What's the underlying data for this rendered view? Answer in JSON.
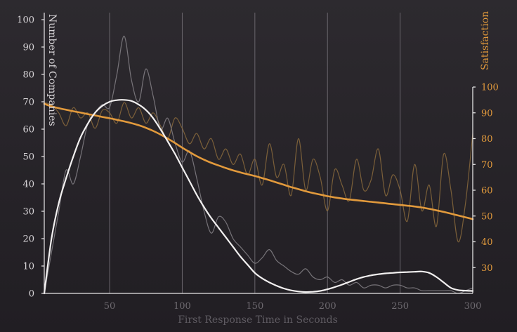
{
  "chart_data": {
    "type": "line",
    "title": "",
    "xlabel": "First Response Time in Seconds",
    "ylabel_left": "Number of Companies",
    "ylabel_right": "Satisfaction",
    "xlim": [
      5,
      300
    ],
    "ylim_left": [
      0,
      100
    ],
    "ylim_right": [
      20,
      100
    ],
    "x_ticks": [
      50,
      100,
      150,
      200,
      250,
      300
    ],
    "y_ticks_left": [
      0,
      10,
      20,
      30,
      40,
      50,
      60,
      70,
      80,
      90,
      100
    ],
    "y_ticks_right": [
      30,
      40,
      50,
      60,
      70,
      80,
      90,
      100
    ],
    "grid": "vertical at x ticks",
    "colors": {
      "companies_raw": "#807c82",
      "companies_smooth": "#f2f0f0",
      "satisfaction_raw": "#8a6a3c",
      "satisfaction_smooth": "#e29a3c",
      "left_axis_text": "#d8d5d8",
      "right_axis_text": "#e29a3c"
    },
    "series": [
      {
        "axis": "left",
        "style": "raw",
        "x": [
          5,
          10,
          15,
          20,
          25,
          30,
          35,
          40,
          45,
          50,
          55,
          60,
          65,
          70,
          75,
          80,
          85,
          90,
          95,
          100,
          105,
          110,
          115,
          120,
          125,
          130,
          135,
          140,
          145,
          150,
          155,
          160,
          165,
          170,
          175,
          180,
          185,
          190,
          195,
          200,
          205,
          210,
          215,
          220,
          225,
          230,
          235,
          240,
          245,
          250,
          255,
          260,
          265,
          270,
          275,
          280,
          285,
          290,
          295,
          300
        ],
        "values": [
          0,
          15,
          30,
          45,
          40,
          50,
          62,
          66,
          69,
          68,
          80,
          94,
          78,
          70,
          82,
          72,
          60,
          64,
          55,
          48,
          52,
          42,
          30,
          22,
          28,
          26,
          20,
          17,
          14,
          11,
          13,
          16,
          12,
          10,
          8,
          7,
          9,
          6,
          5,
          6,
          4,
          5,
          3,
          4,
          2,
          3,
          3,
          2,
          3,
          3,
          2,
          2,
          1,
          1,
          1,
          1,
          1,
          0,
          1,
          2
        ]
      },
      {
        "axis": "left",
        "style": "smooth",
        "x": [
          5,
          10,
          15,
          20,
          25,
          30,
          35,
          40,
          45,
          50,
          55,
          60,
          65,
          70,
          75,
          80,
          85,
          90,
          95,
          100,
          105,
          110,
          115,
          120,
          125,
          130,
          135,
          140,
          145,
          150,
          155,
          160,
          165,
          170,
          175,
          180,
          185,
          190,
          195,
          200,
          205,
          210,
          215,
          220,
          225,
          230,
          235,
          240,
          245,
          250,
          255,
          260,
          265,
          270,
          275,
          280,
          285,
          290,
          295,
          300
        ],
        "values": [
          0,
          20,
          33,
          42,
          50,
          57,
          62,
          66,
          68.5,
          70,
          70.6,
          70.7,
          70.3,
          69,
          67,
          64,
          60,
          55.5,
          51,
          46,
          41,
          36,
          31.5,
          27.5,
          24,
          20.5,
          17,
          13.5,
          10.5,
          7.5,
          5.5,
          4,
          2.8,
          1.8,
          1.1,
          0.7,
          0.5,
          0.6,
          0.9,
          1.5,
          2.3,
          3.2,
          4.2,
          5.2,
          6,
          6.6,
          7,
          7.3,
          7.5,
          7.7,
          7.8,
          7.9,
          8,
          7.5,
          6,
          4,
          2,
          1.2,
          1,
          0.9
        ]
      },
      {
        "axis": "right",
        "style": "raw",
        "x": [
          5,
          10,
          15,
          20,
          25,
          30,
          35,
          40,
          45,
          50,
          55,
          60,
          65,
          70,
          75,
          80,
          85,
          90,
          95,
          100,
          105,
          110,
          115,
          120,
          125,
          130,
          135,
          140,
          145,
          150,
          155,
          160,
          165,
          170,
          175,
          180,
          185,
          190,
          195,
          200,
          205,
          210,
          215,
          220,
          225,
          230,
          235,
          240,
          245,
          250,
          255,
          260,
          265,
          270,
          275,
          280,
          285,
          290,
          295,
          300
        ],
        "values": [
          94,
          93,
          90,
          85,
          92,
          88,
          90,
          84,
          91,
          90,
          86,
          94,
          88,
          92,
          86,
          90,
          85,
          80,
          88,
          84,
          78,
          82,
          76,
          80,
          72,
          76,
          70,
          74,
          66,
          72,
          62,
          78,
          65,
          70,
          58,
          80,
          60,
          72,
          65,
          52,
          68,
          62,
          56,
          72,
          60,
          64,
          76,
          58,
          66,
          60,
          48,
          70,
          52,
          62,
          46,
          74,
          60,
          40,
          55,
          82
        ]
      },
      {
        "axis": "right",
        "style": "smooth",
        "x": [
          5,
          10,
          15,
          20,
          25,
          30,
          35,
          40,
          45,
          50,
          55,
          60,
          65,
          70,
          75,
          80,
          85,
          90,
          95,
          100,
          105,
          110,
          115,
          120,
          125,
          130,
          135,
          140,
          145,
          150,
          155,
          160,
          165,
          170,
          175,
          180,
          185,
          190,
          195,
          200,
          205,
          210,
          215,
          220,
          225,
          230,
          235,
          240,
          245,
          250,
          255,
          260,
          265,
          270,
          275,
          280,
          285,
          290,
          295,
          300
        ],
        "values": [
          93.5,
          92.5,
          91.8,
          91.2,
          90.6,
          90.1,
          89.5,
          89,
          88.4,
          87.9,
          87.3,
          86.7,
          86,
          85.2,
          84.2,
          83,
          81.6,
          80,
          78.3,
          76.5,
          74.8,
          73.2,
          71.8,
          70.6,
          69.6,
          68.6,
          67.7,
          66.9,
          66.2,
          65.5,
          64.7,
          63.9,
          63,
          62.1,
          61.2,
          60.4,
          59.6,
          58.9,
          58.3,
          57.7,
          57.2,
          56.8,
          56.4,
          56.1,
          55.8,
          55.5,
          55.2,
          54.9,
          54.6,
          54.3,
          54,
          53.7,
          53.3,
          52.8,
          52.2,
          51.6,
          50.9,
          50.2,
          49.5,
          48.8
        ]
      }
    ]
  }
}
